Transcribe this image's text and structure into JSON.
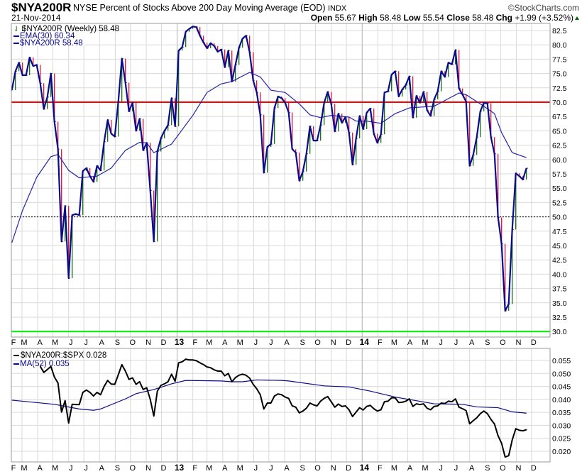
{
  "header": {
    "symbol": "$NYA200R",
    "title": "NYSE Percent of Stocks Above 200 Day Moving Average (EOD)",
    "exchange": "INDX",
    "copyright": "©StockCharts.com",
    "date": "21-Nov-2014",
    "quote": {
      "open_label": "Open",
      "open": "55.67",
      "high_label": "High",
      "high": "58.48",
      "low_label": "Low",
      "low": "55.54",
      "close_label": "Close",
      "close": "58.48",
      "chg_label": "Chg",
      "chg": "+1.99 (+3.52%)",
      "chg_icon": "up-triangle-icon"
    }
  },
  "colors": {
    "up": "#006400",
    "down": "#dd0033",
    "close_line": "#0a0a8c",
    "ema": "#2626a6",
    "ratio": "#000000",
    "ma": "#0a0a8c",
    "red_line": "#ff0000",
    "green_line": "#00ee00",
    "grid": "#d9d9d9"
  },
  "chart_data": [
    {
      "type": "line",
      "panel": "main",
      "frequency": "weekly",
      "x_start": "2012-02-10",
      "x_end": "2014-11-21",
      "legend": {
        "price": "$NYA200R (Weekly) 58.48",
        "ema": "EMA(30) 60.34",
        "close": "$NYA200R 58.48",
        "placement": "top-left"
      },
      "ylim": [
        28.5,
        84
      ],
      "yticks": [
        "30.0",
        "32.5",
        "35.0",
        "37.5",
        "40.0",
        "42.5",
        "45.0",
        "47.5",
        "50.0",
        "52.5",
        "55.0",
        "57.5",
        "60.0",
        "62.5",
        "65.0",
        "67.5",
        "70.0",
        "72.5",
        "75.0",
        "77.5",
        "80.0",
        "82.5"
      ],
      "grid": true,
      "reference_lines": [
        {
          "value": 70,
          "color": "red"
        },
        {
          "value": 50,
          "color": "black",
          "style": "dotted"
        },
        {
          "value": 30,
          "color": "green"
        }
      ],
      "close": [
        72.1,
        75.4,
        76.9,
        74.7,
        74.7,
        77.8,
        76.3,
        76.5,
        73.3,
        68.8,
        70.9,
        75.0,
        66.6,
        61.8,
        45.7,
        51.9,
        39.3,
        50.3,
        50.5,
        50.3,
        58.0,
        58.5,
        57.1,
        56.1,
        58.9,
        58.1,
        63.1,
        66.9,
        64.5,
        64.0,
        70.1,
        77.6,
        73.4,
        68.4,
        69.9,
        65.0,
        67.1,
        61.6,
        62.9,
        54.6,
        45.7,
        61.4,
        63.7,
        65.0,
        66.0,
        70.7,
        65.8,
        79.0,
        79.6,
        82.3,
        82.8,
        83.2,
        83.1,
        81.6,
        80.4,
        79.4,
        80.3,
        79.8,
        78.8,
        79.2,
        76.1,
        79.0,
        73.6,
        76.5,
        79.5,
        81.1,
        81.6,
        78.7,
        73.8,
        71.7,
        67.8,
        57.7,
        62.2,
        62.7,
        69.0,
        71.0,
        70.7,
        69.9,
        68.2,
        61.8,
        61.2,
        56.3,
        57.9,
        61.0,
        65.8,
        63.3,
        63.3,
        66.0,
        69.9,
        71.8,
        69.7,
        64.9,
        68.0,
        66.4,
        67.4,
        64.7,
        59.1,
        63.7,
        67.6,
        65.3,
        68.2,
        68.9,
        64.5,
        62.9,
        64.4,
        71.7,
        71.9,
        74.8,
        75.4,
        71.0,
        72.2,
        73.0,
        74.5,
        67.3,
        71.1,
        69.9,
        71.8,
        68.6,
        67.6,
        70.5,
        71.9,
        75.4,
        74.4,
        76.9,
        76.6,
        79.1,
        72.4,
        71.3,
        70.1,
        58.9,
        60.8,
        63.9,
        68.4,
        69.9,
        69.8,
        63.9,
        61.0,
        49.9,
        45.3,
        33.6,
        34.8,
        47.8,
        57.6,
        57.1,
        56.5,
        58.48
      ],
      "ema30": [
        [
          "2012-02-10",
          45.5
        ],
        [
          "2012-03-02",
          51.1
        ],
        [
          "2012-03-30",
          56.9
        ],
        [
          "2012-04-27",
          60.5
        ],
        [
          "2012-05-11",
          60.9
        ],
        [
          "2012-06-01",
          58.1
        ],
        [
          "2012-06-22",
          56.8
        ],
        [
          "2012-07-27",
          57.1
        ],
        [
          "2012-08-24",
          58.5
        ],
        [
          "2012-09-21",
          61.6
        ],
        [
          "2012-10-19",
          63.0
        ],
        [
          "2012-11-02",
          62.9
        ],
        [
          "2012-11-16",
          61.2
        ],
        [
          "2012-12-21",
          62.7
        ],
        [
          "2013-02-01",
          67.7
        ],
        [
          "2013-03-01",
          71.7
        ],
        [
          "2013-03-29",
          73.2
        ],
        [
          "2013-04-19",
          73.6
        ],
        [
          "2013-05-24",
          75.2
        ],
        [
          "2013-06-14",
          74.4
        ],
        [
          "2013-07-05",
          72.1
        ],
        [
          "2013-08-02",
          71.7
        ],
        [
          "2013-08-30",
          69.7
        ],
        [
          "2013-09-20",
          67.8
        ],
        [
          "2013-10-11",
          67.3
        ],
        [
          "2013-11-01",
          67.7
        ],
        [
          "2013-12-06",
          67.4
        ],
        [
          "2013-12-20",
          66.7
        ],
        [
          "2014-01-10",
          66.7
        ],
        [
          "2014-02-07",
          66.3
        ],
        [
          "2014-03-07",
          68.0
        ],
        [
          "2014-04-04",
          69.0
        ],
        [
          "2014-05-23",
          69.3
        ],
        [
          "2014-07-11",
          71.6
        ],
        [
          "2014-07-25",
          71.3
        ],
        [
          "2014-08-22",
          69.7
        ],
        [
          "2014-09-19",
          68.0
        ],
        [
          "2014-10-03",
          64.7
        ],
        [
          "2014-10-24",
          61.2
        ],
        [
          "2014-11-21",
          60.34
        ]
      ]
    },
    {
      "type": "line",
      "panel": "lower",
      "frequency": "weekly",
      "legend": {
        "ratio": "$NYA200R:$SPX 0.028",
        "ma": "MA(52) 0.035",
        "placement": "top-left"
      },
      "ylim": [
        0.0165,
        0.0575
      ],
      "yticks": [
        "0.020",
        "0.025",
        "0.030",
        "0.035",
        "0.040",
        "0.045",
        "0.050",
        "0.055"
      ],
      "grid": true,
      "ratio": [
        null,
        null,
        null,
        null,
        null,
        null,
        null,
        null,
        0.0527,
        0.0504,
        0.0515,
        0.0527,
        0.0486,
        0.0463,
        0.0351,
        0.0395,
        0.0309,
        0.0381,
        0.038,
        0.038,
        0.0427,
        0.0436,
        0.0427,
        0.0413,
        0.0427,
        0.0418,
        0.045,
        0.0473,
        0.0459,
        0.0458,
        0.0495,
        0.0534,
        0.0509,
        0.0477,
        0.0483,
        0.0458,
        0.0468,
        0.0438,
        0.0445,
        0.04,
        0.0336,
        0.0432,
        0.0454,
        0.046,
        0.0468,
        0.0497,
        0.047,
        0.0541,
        0.0545,
        0.0555,
        0.0552,
        0.0552,
        0.0549,
        0.0541,
        0.0534,
        0.0525,
        0.0522,
        0.0514,
        0.0509,
        0.0509,
        0.0491,
        0.05,
        0.0468,
        0.0484,
        0.0493,
        0.0497,
        0.0493,
        0.0482,
        0.0458,
        0.0441,
        0.0418,
        0.0363,
        0.0386,
        0.0386,
        0.0413,
        0.0421,
        0.0418,
        0.0409,
        0.0404,
        0.0375,
        0.037,
        0.0348,
        0.0355,
        0.0366,
        0.0386,
        0.0379,
        0.0375,
        0.0393,
        0.0404,
        0.0411,
        0.0391,
        0.037,
        0.0382,
        0.0373,
        0.0375,
        0.036,
        0.0334,
        0.0351,
        0.0368,
        0.0359,
        0.0373,
        0.0377,
        0.0364,
        0.0355,
        0.036,
        0.0391,
        0.0393,
        0.0406,
        0.0406,
        0.0388,
        0.0389,
        0.0393,
        0.0402,
        0.0373,
        0.0383,
        0.038,
        0.0383,
        0.0366,
        0.036,
        0.0373,
        0.0375,
        0.0386,
        0.0384,
        0.0393,
        0.0391,
        0.0402,
        0.037,
        0.0364,
        0.0357,
        0.0306,
        0.0318,
        0.0329,
        0.0345,
        0.0355,
        0.0345,
        0.0323,
        0.0305,
        0.026,
        0.0231,
        0.0178,
        0.0183,
        0.0244,
        0.0287,
        0.0281,
        0.0279,
        0.0283
      ],
      "ma52": [
        [
          "2012-02-10",
          0.0397
        ],
        [
          "2012-05-04",
          0.0381
        ],
        [
          "2012-06-22",
          0.0363
        ],
        [
          "2012-07-20",
          0.0358
        ],
        [
          "2012-08-03",
          0.0363
        ],
        [
          "2012-09-21",
          0.0402
        ],
        [
          "2012-10-12",
          0.0422
        ],
        [
          "2012-11-16",
          0.0438
        ],
        [
          "2012-12-21",
          0.046
        ],
        [
          "2013-01-18",
          0.0473
        ],
        [
          "2013-03-29",
          0.0471
        ],
        [
          "2013-04-19",
          0.0468
        ],
        [
          "2013-05-10",
          0.0468
        ],
        [
          "2013-06-07",
          0.0475
        ],
        [
          "2013-07-26",
          0.0473
        ],
        [
          "2013-08-09",
          0.0471
        ],
        [
          "2013-10-18",
          0.0452
        ],
        [
          "2013-12-06",
          0.0448
        ],
        [
          "2014-01-17",
          0.0432
        ],
        [
          "2014-03-07",
          0.0409
        ],
        [
          "2014-05-23",
          0.0383
        ],
        [
          "2014-07-18",
          0.0381
        ],
        [
          "2014-08-15",
          0.0371
        ],
        [
          "2014-09-26",
          0.0368
        ],
        [
          "2014-10-24",
          0.0352
        ],
        [
          "2014-11-21",
          0.0347
        ]
      ]
    }
  ],
  "x_axis": {
    "labels": [
      {
        "date": "2012-02-01",
        "text": "F"
      },
      {
        "date": "2012-03-01",
        "text": "M"
      },
      {
        "date": "2012-04-01",
        "text": "A"
      },
      {
        "date": "2012-05-01",
        "text": "M"
      },
      {
        "date": "2012-06-01",
        "text": "J"
      },
      {
        "date": "2012-07-01",
        "text": "J"
      },
      {
        "date": "2012-08-01",
        "text": "A"
      },
      {
        "date": "2012-09-01",
        "text": "S"
      },
      {
        "date": "2012-10-01",
        "text": "O"
      },
      {
        "date": "2012-11-01",
        "text": "N"
      },
      {
        "date": "2012-12-01",
        "text": "D"
      },
      {
        "date": "2013-01-01",
        "text": "13",
        "year": true
      },
      {
        "date": "2013-02-01",
        "text": "F"
      },
      {
        "date": "2013-03-01",
        "text": "M"
      },
      {
        "date": "2013-04-01",
        "text": "A"
      },
      {
        "date": "2013-05-01",
        "text": "M"
      },
      {
        "date": "2013-06-01",
        "text": "J"
      },
      {
        "date": "2013-07-01",
        "text": "J"
      },
      {
        "date": "2013-08-01",
        "text": "A"
      },
      {
        "date": "2013-09-01",
        "text": "S"
      },
      {
        "date": "2013-10-01",
        "text": "O"
      },
      {
        "date": "2013-11-01",
        "text": "N"
      },
      {
        "date": "2013-12-01",
        "text": "D"
      },
      {
        "date": "2014-01-01",
        "text": "14",
        "year": true
      },
      {
        "date": "2014-02-01",
        "text": "F"
      },
      {
        "date": "2014-03-01",
        "text": "M"
      },
      {
        "date": "2014-04-01",
        "text": "A"
      },
      {
        "date": "2014-05-01",
        "text": "M"
      },
      {
        "date": "2014-06-01",
        "text": "J"
      },
      {
        "date": "2014-07-01",
        "text": "J"
      },
      {
        "date": "2014-08-01",
        "text": "A"
      },
      {
        "date": "2014-09-01",
        "text": "S"
      },
      {
        "date": "2014-10-01",
        "text": "O"
      },
      {
        "date": "2014-11-01",
        "text": "N"
      },
      {
        "date": "2014-12-01",
        "text": "D"
      }
    ]
  }
}
